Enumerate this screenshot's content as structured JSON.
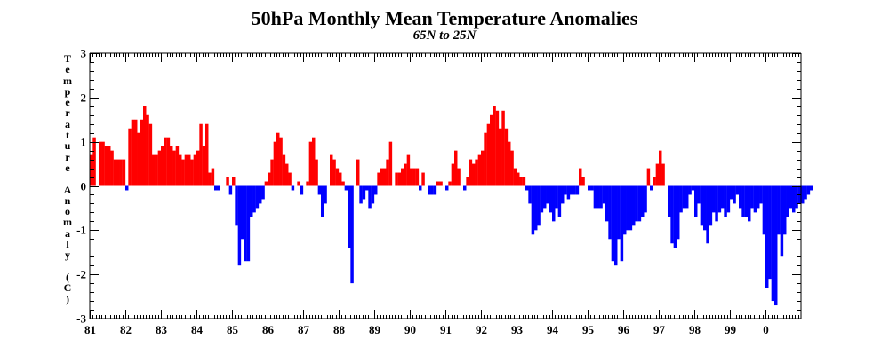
{
  "chart_data": {
    "type": "bar",
    "title": "50hPa Monthly Mean Temperature Anomalies",
    "subtitle": "65N to 25N",
    "ylabel": "Temperature Anomaly (C)",
    "xlabel": "",
    "ylim": [
      -3,
      3
    ],
    "yticks": [
      -3,
      -2,
      -1,
      0,
      1,
      2,
      3
    ],
    "ytick_labels": [
      "-3",
      "-2",
      "-1",
      "0",
      "1",
      "2",
      "3"
    ],
    "xlim": [
      1981.0,
      2001.0
    ],
    "xticks": [
      1981,
      1982,
      1983,
      1984,
      1985,
      1986,
      1987,
      1988,
      1989,
      1990,
      1991,
      1992,
      1993,
      1994,
      1995,
      1996,
      1997,
      1998,
      1999,
      2000
    ],
    "xtick_labels": [
      "81",
      "82",
      "83",
      "84",
      "85",
      "86",
      "87",
      "88",
      "89",
      "90",
      "91",
      "92",
      "93",
      "94",
      "95",
      "96",
      "97",
      "98",
      "99",
      "0"
    ],
    "start_year": 1981,
    "start_month": 1,
    "positive_color": "#ff0000",
    "negative_color": "#0000ff",
    "grid": false,
    "values": [
      0.7,
      1.1,
      0.0,
      1.0,
      1.0,
      0.9,
      0.9,
      0.8,
      0.6,
      0.6,
      0.6,
      0.6,
      -0.1,
      1.3,
      1.5,
      1.5,
      1.2,
      1.5,
      1.8,
      1.6,
      1.4,
      0.7,
      0.7,
      0.8,
      0.9,
      1.1,
      1.1,
      0.9,
      0.8,
      0.9,
      0.7,
      0.6,
      0.7,
      0.7,
      0.6,
      0.7,
      0.8,
      1.4,
      0.9,
      1.4,
      0.3,
      0.4,
      -0.1,
      -0.1,
      0.0,
      0.0,
      0.2,
      -0.2,
      0.2,
      -0.9,
      -1.8,
      -1.2,
      -1.7,
      -1.7,
      -0.7,
      -0.6,
      -0.5,
      -0.4,
      -0.3,
      0.1,
      0.3,
      0.6,
      1.0,
      1.2,
      1.1,
      0.7,
      0.5,
      0.3,
      -0.1,
      0.0,
      0.1,
      -0.2,
      0.0,
      0.1,
      1.0,
      1.1,
      0.6,
      -0.2,
      -0.7,
      -0.4,
      0.0,
      0.7,
      0.6,
      0.4,
      0.3,
      0.1,
      -0.1,
      -1.4,
      -2.2,
      0.0,
      0.6,
      -0.4,
      -0.3,
      -0.1,
      -0.5,
      -0.4,
      -0.2,
      0.3,
      0.4,
      0.4,
      0.6,
      1.0,
      0.0,
      0.3,
      0.3,
      0.4,
      0.5,
      0.7,
      0.4,
      0.4,
      0.4,
      -0.1,
      0.3,
      0.0,
      -0.2,
      -0.2,
      -0.2,
      0.1,
      0.1,
      0.0,
      -0.1,
      0.1,
      0.5,
      0.8,
      0.4,
      0.0,
      -0.1,
      0.2,
      0.6,
      0.5,
      0.6,
      0.7,
      0.8,
      1.2,
      1.4,
      1.6,
      1.8,
      1.7,
      1.3,
      1.7,
      1.3,
      1.0,
      0.8,
      0.4,
      0.3,
      0.2,
      0.2,
      -0.1,
      -0.4,
      -1.1,
      -1.0,
      -0.9,
      -0.6,
      -0.5,
      -0.4,
      -0.6,
      -0.8,
      -0.5,
      -0.7,
      -0.4,
      -0.2,
      -0.3,
      -0.2,
      -0.2,
      -0.2,
      0.4,
      0.2,
      0.0,
      -0.1,
      -0.1,
      -0.5,
      -0.5,
      -0.5,
      -0.4,
      -0.8,
      -1.2,
      -1.7,
      -1.8,
      -1.2,
      -1.7,
      -1.1,
      -1.0,
      -1.0,
      -0.9,
      -0.8,
      -0.8,
      -0.7,
      -0.6,
      0.4,
      -0.1,
      0.2,
      0.5,
      0.8,
      0.5,
      0.0,
      -0.7,
      -1.3,
      -1.4,
      -1.2,
      -0.6,
      -0.5,
      -0.5,
      -0.2,
      -0.1,
      -0.7,
      -0.4,
      -0.9,
      -1.0,
      -1.3,
      -0.9,
      -0.6,
      -0.8,
      -0.6,
      -0.5,
      -0.7,
      -0.6,
      -0.3,
      -0.4,
      -0.2,
      -0.5,
      -0.7,
      -0.7,
      -0.8,
      -0.5,
      -0.6,
      -0.5,
      -0.4,
      -1.1,
      -2.3,
      -2.1,
      -2.6,
      -2.7,
      -1.1,
      -1.6,
      -1.1,
      -0.7,
      -0.5,
      -0.6,
      -0.5,
      -0.4,
      -0.4,
      -0.3,
      -0.2,
      -0.1
    ]
  }
}
